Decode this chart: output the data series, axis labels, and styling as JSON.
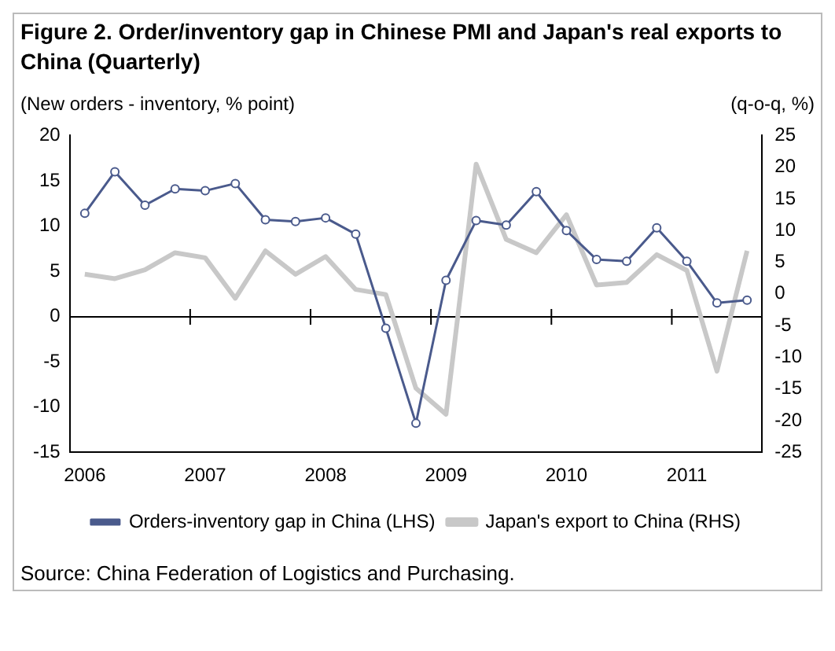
{
  "chart_data": {
    "type": "line",
    "title": "Figure 2. Order/inventory gap in Chinese PMI and Japan's real exports to China (Quarterly)",
    "ylabel": "(New orders - inventory, % point)",
    "y2label": "(q-o-q, %)",
    "annotations": [
      "Source: China Federation of Logistics and Purchasing."
    ],
    "categories": [
      "2006",
      null,
      null,
      null,
      "2007",
      null,
      null,
      null,
      "2008",
      null,
      null,
      null,
      "2009",
      null,
      null,
      null,
      "2010",
      null,
      null,
      null,
      "2011",
      null,
      null
    ],
    "series": [
      {
        "name": "Orders-inventory gap in China (LHS)",
        "color": "#4a5a8c",
        "marker": "circle",
        "values": [
          11.4,
          16,
          12.3,
          14.1,
          13.9,
          14.7,
          10.7,
          10.5,
          10.9,
          9.1,
          -1.3,
          -11.8,
          4,
          10.6,
          10.1,
          13.8,
          9.5,
          6.3,
          6.1,
          9.8,
          6.1,
          1.5,
          1.8
        ]
      },
      {
        "name": "Japan's export to China (RHS)",
        "color": "#c8c8c8",
        "marker": "none",
        "axis": "y2",
        "values": [
          3.1,
          2.4,
          3.8,
          6.5,
          5.7,
          -0.7,
          6.8,
          3.1,
          5.9,
          0.7,
          -0.1,
          -14.9,
          -19,
          20.5,
          8.6,
          6.5,
          12.5,
          1.4,
          1.8,
          6.2,
          3.7,
          -12.2,
          6.8
        ]
      }
    ],
    "ylim": [
      -15,
      20
    ],
    "yticks": [
      -15,
      -10,
      -5,
      0,
      5,
      10,
      15,
      20
    ],
    "y2lim": [
      -25,
      25
    ],
    "y2ticks": [
      -25,
      -20,
      -15,
      -10,
      -5,
      0,
      5,
      10,
      15,
      20,
      25
    ],
    "ref_lines": [
      {
        "axis": "y",
        "value": 0,
        "color": "#000000"
      }
    ],
    "legend": "bottom",
    "grid": false
  }
}
